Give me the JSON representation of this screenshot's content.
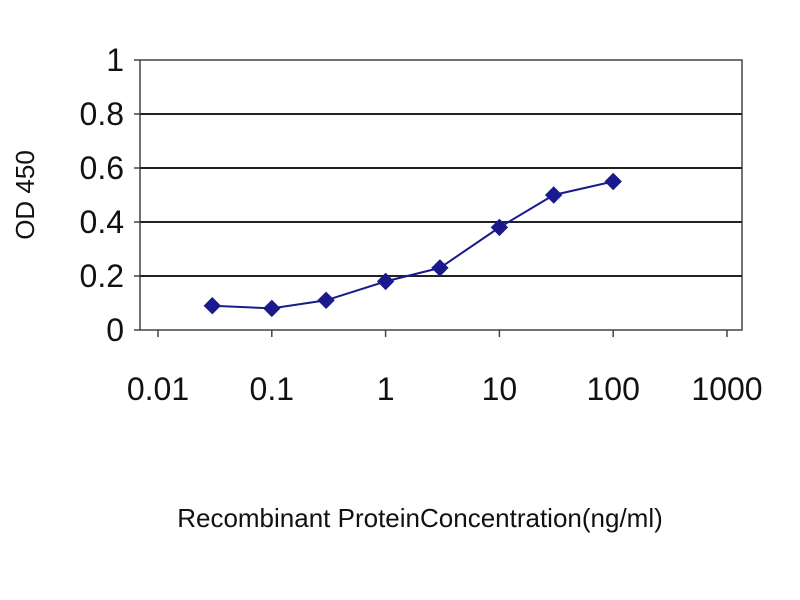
{
  "chart_data": {
    "type": "line",
    "title": "",
    "xlabel": "Recombinant ProteinConcentration(ng/ml)",
    "ylabel": "OD 450",
    "x_scale": "log",
    "xlim": [
      0.01,
      1000
    ],
    "ylim": [
      0,
      1
    ],
    "x_ticks": [
      "0.01",
      "0.1",
      "1",
      "10",
      "100",
      "1000"
    ],
    "y_ticks": [
      "0",
      "0.2",
      "0.4",
      "0.6",
      "0.8",
      "1"
    ],
    "grid": "horizontal",
    "legend": "none",
    "series": [
      {
        "color": "#1a1a8c",
        "marker": "diamond",
        "points": [
          {
            "x": 0.03,
            "y": 0.09
          },
          {
            "x": 0.1,
            "y": 0.08
          },
          {
            "x": 0.3,
            "y": 0.11
          },
          {
            "x": 1,
            "y": 0.18
          },
          {
            "x": 3,
            "y": 0.23
          },
          {
            "x": 10,
            "y": 0.38
          },
          {
            "x": 30,
            "y": 0.5
          },
          {
            "x": 100,
            "y": 0.55
          }
        ]
      }
    ]
  }
}
